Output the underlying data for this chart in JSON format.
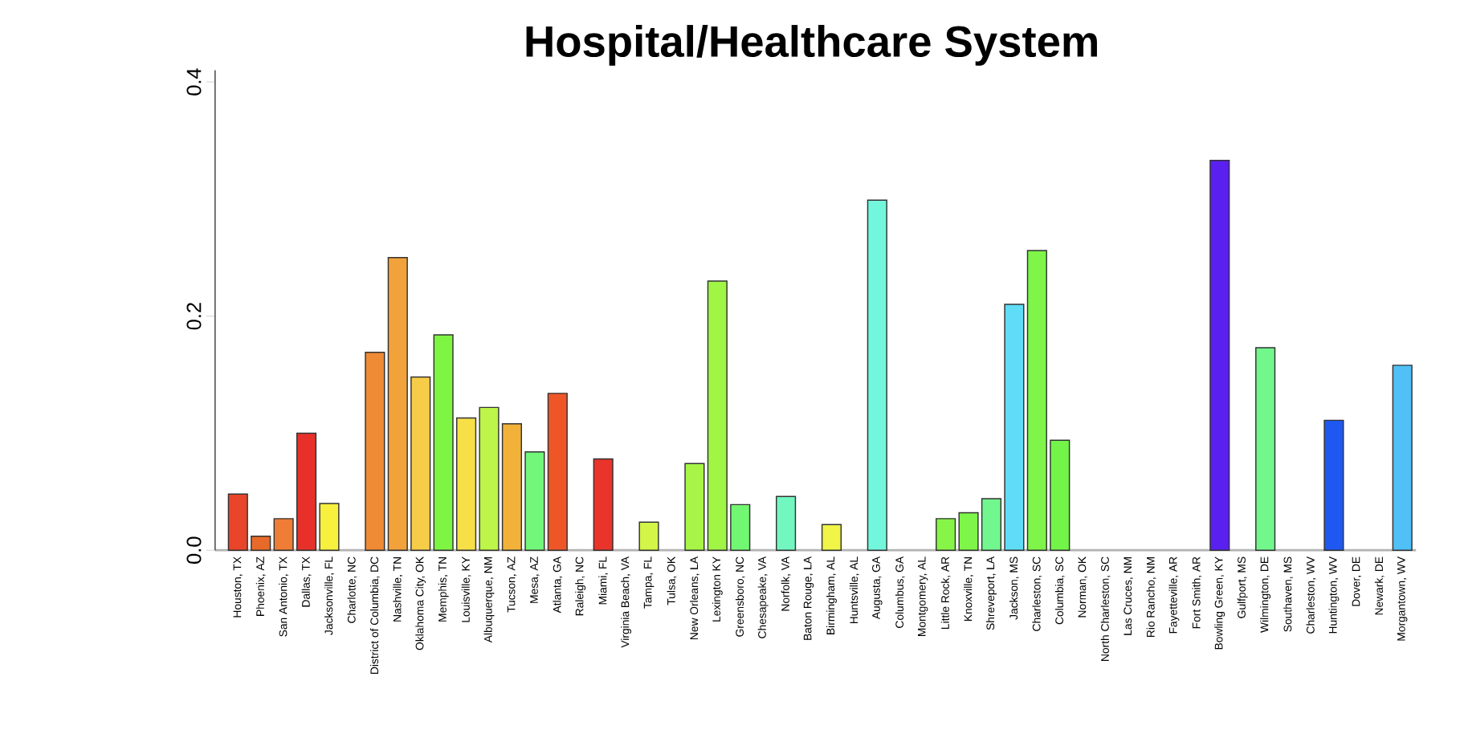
{
  "chart_data": {
    "type": "bar",
    "title": "Hospital/Healthcare System",
    "categories": [
      "Houston, TX",
      "Phoenix, AZ",
      "San Antonio, TX",
      "Dallas, TX",
      "Jacksonville, FL",
      "Charlotte, NC",
      "District of Columbia, DC",
      "Nashville, TN",
      "Oklahoma City, OK",
      "Memphis, TN",
      "Louisville, KY",
      "Albuquerque, NM",
      "Tucson, AZ",
      "Mesa, AZ",
      "Atlanta, GA",
      "Raleigh, NC",
      "Miami, FL",
      "Virginia Beach, VA",
      "Tampa, FL",
      "Tulsa, OK",
      "New Orleans, LA",
      "Lexington KY",
      "Greensboro, NC",
      "Chesapeake, VA",
      "Norfolk, VA",
      "Baton Rouge, LA",
      "Birmingham, AL",
      "Huntsville, AL",
      "Augusta, GA",
      "Columbus, GA",
      "Montgomery, AL",
      "Little Rock, AR",
      "Knoxville, TN",
      "Shreveport, LA",
      "Jackson, MS",
      "Charleston, SC",
      "Columbia, SC",
      "Norman, OK",
      "North Charleston, SC",
      "Las Cruces, NM",
      "Rio Rancho, NM",
      "Fayetteville, AR",
      "Fort Smith, AR",
      "Bowling Green, KY",
      "Gulfport, MS",
      "Wilmington, DE",
      "Southaven, MS",
      "Charleston, WV",
      "Huntington, WV",
      "Dover, DE",
      "Newark, DE",
      "Morgantown, WV"
    ],
    "values": [
      0.048,
      0.012,
      0.027,
      0.1,
      0.04,
      0,
      0.169,
      0.25,
      0.148,
      0.184,
      0.113,
      0.122,
      0.108,
      0.084,
      0.134,
      0,
      0.078,
      0,
      0.024,
      0,
      0.074,
      0.23,
      0.039,
      0,
      0.046,
      0,
      0.022,
      0,
      0.299,
      0,
      0,
      0.027,
      0.032,
      0.044,
      0.21,
      0.256,
      0.094,
      0,
      0,
      0,
      0,
      0,
      0,
      0.333,
      0,
      0.173,
      0,
      0,
      0.111,
      0,
      0,
      0.158
    ],
    "colors": [
      "#e8452a",
      "#e86a2a",
      "#ef7d35",
      "#e8302a",
      "#f7f03e",
      null,
      "#ef8a35",
      "#f2a23a",
      "#f7cc48",
      "#7ef542",
      "#f7df48",
      "#bdf548",
      "#f2b23a",
      "#72f77a",
      "#ee5628",
      null,
      "#e8342a",
      null,
      "#d2f548",
      null,
      "#a8f548",
      "#a0f545",
      "#72f772",
      null,
      "#72f7c0",
      null,
      "#f0f548",
      null,
      "#72f7dc",
      null,
      null,
      "#86f548",
      "#7ef548",
      "#72f78e",
      "#60dcf7",
      "#7ef548",
      "#72f548",
      null,
      null,
      null,
      null,
      null,
      null,
      "#5a20f0",
      null,
      "#72f78c",
      null,
      null,
      "#1e58f0",
      null,
      null,
      "#50c0f7"
    ],
    "ylim": [
      0,
      0.41
    ],
    "yticks": [
      {
        "value": 0,
        "label": "0.0"
      },
      0.2,
      0.4
    ]
  }
}
